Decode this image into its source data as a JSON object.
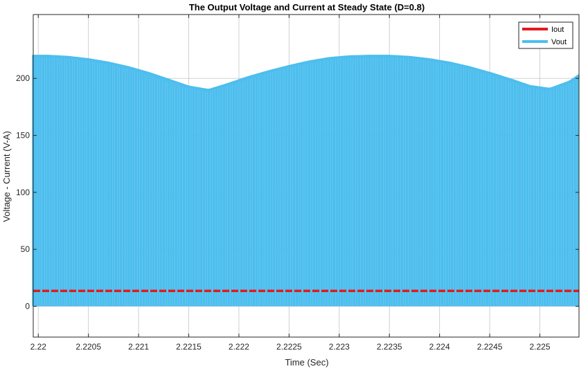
{
  "chart_data": {
    "type": "line",
    "title": "The Output Voltage and Current at Steady State (D=0.8)",
    "xlabel": "Time (Sec)",
    "ylabel": "Voltage - Current (V-A)",
    "xlim": [
      2.21995,
      2.22539
    ],
    "ylim": [
      -27,
      256
    ],
    "grid": true,
    "legend_position": "top-right",
    "x_ticks": [
      2.22,
      2.2205,
      2.221,
      2.2215,
      2.222,
      2.2225,
      2.223,
      2.2235,
      2.224,
      2.2245,
      2.225
    ],
    "x_tick_labels": [
      "2.22",
      "2.2205",
      "2.221",
      "2.2215",
      "2.222",
      "2.2225",
      "2.223",
      "2.2235",
      "2.224",
      "2.2245",
      "2.225"
    ],
    "y_ticks": [
      0,
      50,
      100,
      150,
      200
    ],
    "y_tick_labels": [
      "0",
      "50",
      "100",
      "150",
      "200"
    ],
    "series": [
      {
        "name": "Iout",
        "color": "#e31a1c",
        "kind": "constant",
        "value": 13.5
      },
      {
        "name": "Vout",
        "color": "#4dbeee",
        "kind": "switching",
        "low": 0,
        "pulse_period": 5e-05,
        "first_pulse": 2.21995,
        "last_pulse": 2.22539,
        "envelope": {
          "x": [
            2.21995,
            2.2201,
            2.2203,
            2.2205,
            2.2207,
            2.2209,
            2.2211,
            2.2213,
            2.2215,
            2.2217,
            2.2219,
            2.2221,
            2.2223,
            2.2225,
            2.2227,
            2.2229,
            2.2231,
            2.2233,
            2.2235,
            2.2237,
            2.2239,
            2.2241,
            2.2243,
            2.2245,
            2.2247,
            2.2249,
            2.2251,
            2.2253,
            2.22539
          ],
          "y": [
            219.5,
            219.5,
            218.5,
            216.5,
            213.5,
            209.5,
            204.5,
            198.5,
            192.5,
            189.5,
            195,
            201,
            206,
            210.5,
            214.5,
            217.5,
            219,
            219.5,
            219.5,
            218.5,
            216.5,
            213.5,
            209.5,
            204.5,
            199,
            193,
            190.5,
            197,
            202.5
          ]
        }
      }
    ]
  }
}
